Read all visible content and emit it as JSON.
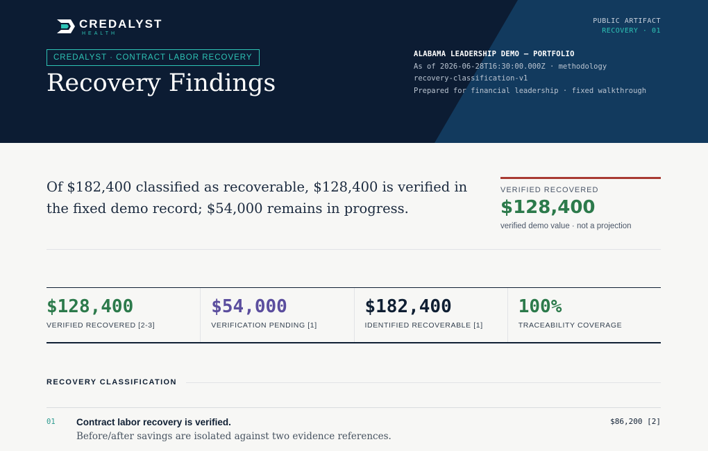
{
  "header": {
    "brand": {
      "name": "CREDALYST",
      "sub": "HEALTH"
    },
    "tag": "CREDALYST · CONTRACT LABOR RECOVERY",
    "title": "Recovery Findings",
    "artifact": {
      "line1": "PUBLIC ARTIFACT",
      "line2": "RECOVERY · 01"
    },
    "meta": {
      "title": "ALABAMA LEADERSHIP DEMO — PORTFOLIO",
      "line1": "As of 2026-06-28T16:30:00.000Z · methodology",
      "line2": "recovery-classification-v1",
      "line3": "Prepared for financial leadership · fixed walkthrough"
    }
  },
  "summary": {
    "lede": "Of $182,400 classified as recoverable, $128,400 is verified in the fixed demo record; $54,000 remains in progress.",
    "callout": {
      "label": "VERIFIED RECOVERED",
      "value": "$128,400",
      "note": "verified demo value · not a projection"
    }
  },
  "stats": [
    {
      "value": "$128,400",
      "label": "VERIFIED RECOVERED [2-3]"
    },
    {
      "value": "$54,000",
      "label": "VERIFICATION PENDING [1]"
    },
    {
      "value": "$182,400",
      "label": "IDENTIFIED RECOVERABLE [1]"
    },
    {
      "value": "100%",
      "label": "TRACEABILITY COVERAGE"
    }
  ],
  "classification": {
    "heading": "RECOVERY CLASSIFICATION",
    "items": [
      {
        "num": "01",
        "title": "Contract labor recovery is verified.",
        "desc": "Before/after savings are isolated against two evidence references.",
        "amount": "$86,200 [2]"
      }
    ]
  },
  "colors": {
    "header_bg": "#0c1c33",
    "accent_teal": "#2ec4b6",
    "verified_green": "#2c7a4b",
    "pending_purple": "#5b4e9e",
    "callout_rule": "#a83a32"
  }
}
